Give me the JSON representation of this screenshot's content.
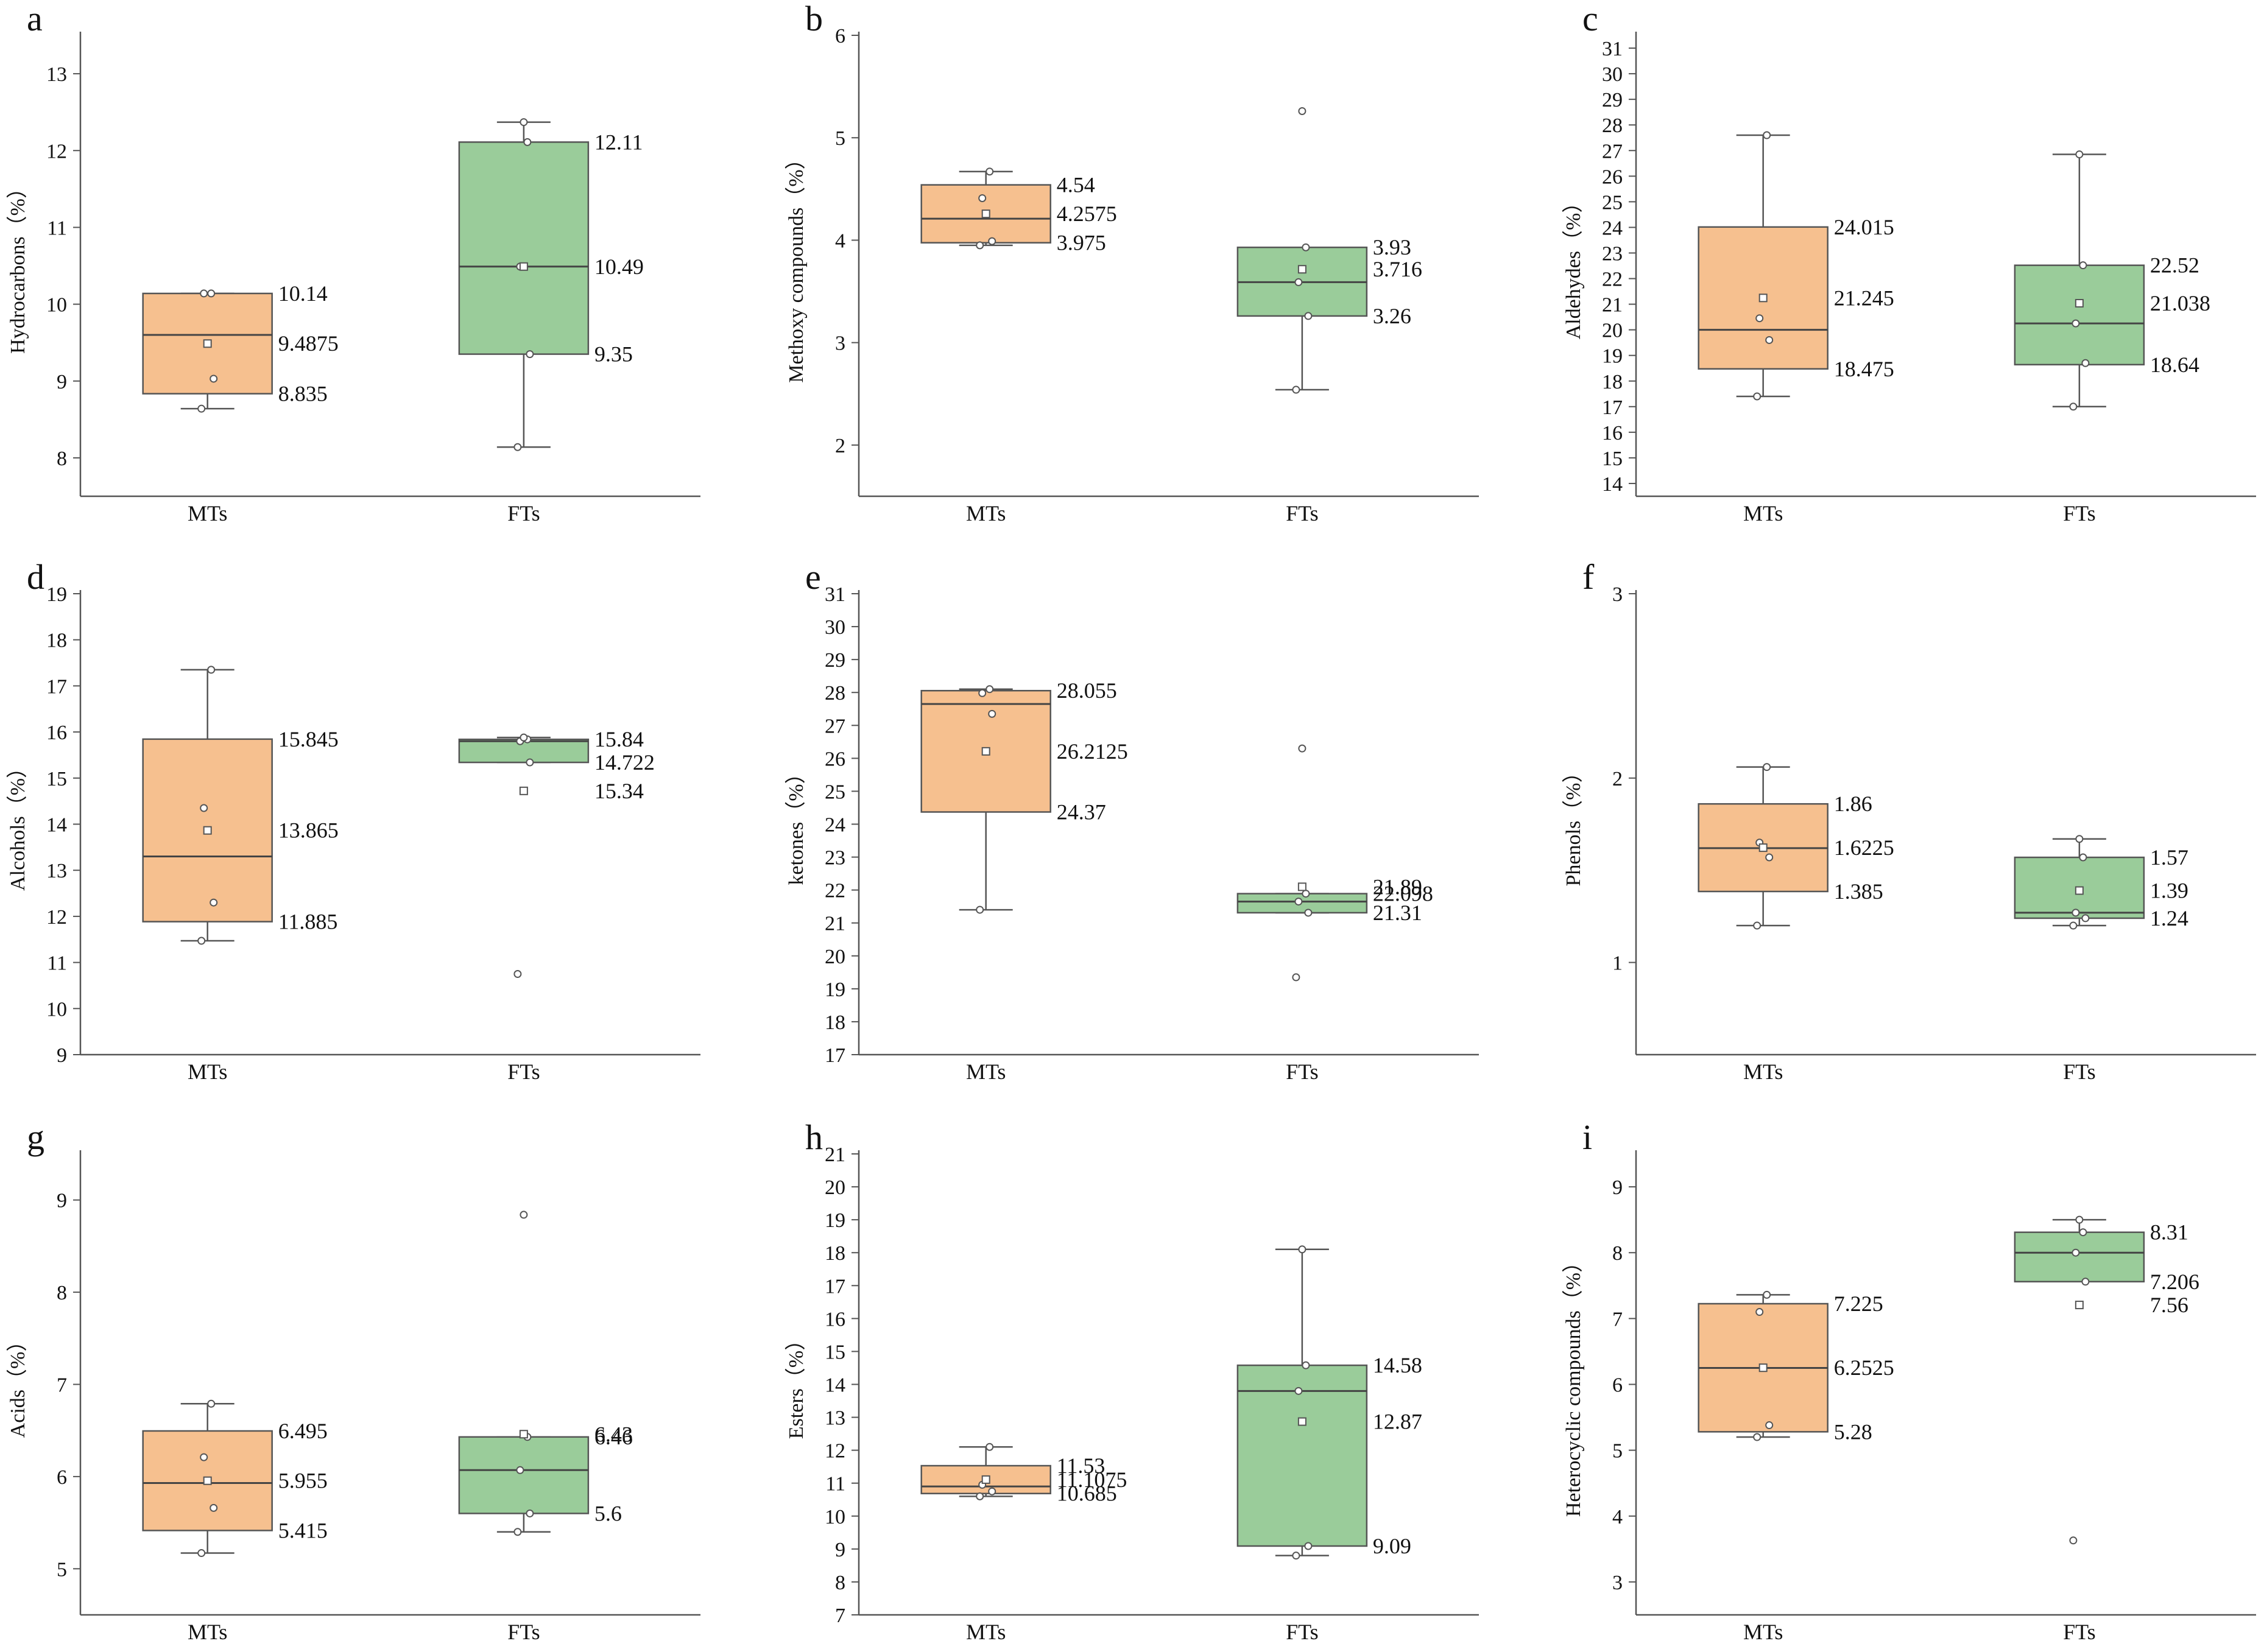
{
  "colors": {
    "MTs": "#F6C08F",
    "FTs": "#9ACC9A",
    "axis": "#555555",
    "box_edge": "#555555",
    "median": "#444444",
    "point_edge": "#555555"
  },
  "chart_data": [
    {
      "type": "box",
      "panel": "a",
      "ylabel": "Hydrocarbons（%）",
      "ylim": [
        7.5,
        13.5
      ],
      "yticks": [
        8,
        9,
        10,
        11,
        12,
        13
      ],
      "categories": [
        "MTs",
        "FTs"
      ],
      "boxes": [
        {
          "q1": 8.835,
          "median": 9.6,
          "q3": 10.14,
          "whisker_low": 8.64,
          "whisker_high": 10.14,
          "mean": 9.4875,
          "points": [
            8.64,
            9.03,
            10.14,
            10.14
          ],
          "labels": [
            "10.14",
            "9.4875",
            "8.835"
          ]
        },
        {
          "q1": 9.35,
          "median": 10.49,
          "q3": 12.11,
          "whisker_low": 8.14,
          "whisker_high": 12.37,
          "mean": 10.49,
          "points": [
            8.14,
            9.35,
            10.49,
            12.11,
            12.37
          ],
          "labels": [
            "12.11",
            "10.49",
            "9.35"
          ]
        }
      ]
    },
    {
      "type": "box",
      "panel": "b",
      "ylabel": "Methoxy compounds（%）",
      "ylim": [
        1.5,
        6
      ],
      "yticks": [
        2,
        3,
        4,
        5,
        6
      ],
      "categories": [
        "MTs",
        "FTs"
      ],
      "boxes": [
        {
          "q1": 3.975,
          "median": 4.21,
          "q3": 4.54,
          "whisker_low": 3.95,
          "whisker_high": 4.67,
          "mean": 4.2575,
          "points": [
            3.95,
            3.99,
            4.41,
            4.67
          ],
          "labels": [
            "4.54",
            "4.2575",
            "3.975"
          ]
        },
        {
          "q1": 3.26,
          "median": 3.59,
          "q3": 3.93,
          "whisker_low": 2.54,
          "whisker_high": 3.93,
          "mean": 3.716,
          "points": [
            2.54,
            3.26,
            3.59,
            3.93,
            5.26
          ],
          "labels": [
            "3.93",
            "3.716",
            "3.26"
          ]
        }
      ]
    },
    {
      "type": "box",
      "panel": "c",
      "ylabel": "Aldehydes（%）",
      "ylim": [
        13.5,
        31.5
      ],
      "yticks": [
        14,
        15,
        16,
        17,
        18,
        19,
        20,
        21,
        22,
        23,
        24,
        25,
        26,
        27,
        28,
        29,
        30,
        31
      ],
      "categories": [
        "MTs",
        "FTs"
      ],
      "boxes": [
        {
          "q1": 18.475,
          "median": 20.0,
          "q3": 24.015,
          "whisker_low": 17.4,
          "whisker_high": 27.6,
          "mean": 21.245,
          "points": [
            17.4,
            19.6,
            20.45,
            27.6
          ],
          "labels": [
            "24.015",
            "21.245",
            "18.475"
          ]
        },
        {
          "q1": 18.64,
          "median": 20.25,
          "q3": 22.52,
          "whisker_low": 17.0,
          "whisker_high": 26.85,
          "mean": 21.038,
          "points": [
            17.0,
            18.7,
            20.25,
            22.52,
            26.85
          ],
          "labels": [
            "22.52",
            "21.038",
            "18.64"
          ]
        }
      ]
    },
    {
      "type": "box",
      "panel": "d",
      "ylabel": "Alcohols（%）",
      "ylim": [
        9,
        19
      ],
      "yticks": [
        9,
        10,
        11,
        12,
        13,
        14,
        15,
        16,
        17,
        18,
        19
      ],
      "categories": [
        "MTs",
        "FTs"
      ],
      "boxes": [
        {
          "q1": 11.885,
          "median": 13.3,
          "q3": 15.845,
          "whisker_low": 11.47,
          "whisker_high": 17.35,
          "mean": 13.865,
          "points": [
            11.47,
            12.3,
            14.35,
            17.35
          ],
          "labels": [
            "15.845",
            "13.865",
            "11.885"
          ]
        },
        {
          "q1": 15.34,
          "median": 15.8,
          "q3": 15.84,
          "whisker_low": 15.34,
          "whisker_high": 15.88,
          "mean": 14.722,
          "points": [
            10.75,
            15.34,
            15.8,
            15.84,
            15.88
          ],
          "labels": [
            "15.84",
            "15.34",
            "14.722"
          ]
        }
      ]
    },
    {
      "type": "box",
      "panel": "e",
      "ylabel": "ketones（%）",
      "ylim": [
        17,
        31
      ],
      "yticks": [
        17,
        18,
        19,
        20,
        21,
        22,
        23,
        24,
        25,
        26,
        27,
        28,
        29,
        30,
        31
      ],
      "categories": [
        "MTs",
        "FTs"
      ],
      "boxes": [
        {
          "q1": 24.37,
          "median": 27.65,
          "q3": 28.055,
          "whisker_low": 21.4,
          "whisker_high": 28.1,
          "mean": 26.2125,
          "points": [
            21.4,
            27.35,
            27.98,
            28.1
          ],
          "labels": [
            "28.055",
            "26.2125",
            "24.37"
          ]
        },
        {
          "q1": 21.31,
          "median": 21.65,
          "q3": 21.89,
          "whisker_low": 21.31,
          "whisker_high": 21.89,
          "mean": 22.098,
          "points": [
            19.35,
            21.31,
            21.65,
            21.89,
            26.3
          ],
          "labels": [
            "22.098",
            "21.89",
            "21.31"
          ]
        }
      ]
    },
    {
      "type": "box",
      "panel": "f",
      "ylabel": "Phenols（%）",
      "ylim": [
        0.5,
        3
      ],
      "yticks": [
        1,
        2,
        3
      ],
      "categories": [
        "MTs",
        "FTs"
      ],
      "boxes": [
        {
          "q1": 1.385,
          "median": 1.62,
          "q3": 1.86,
          "whisker_low": 1.2,
          "whisker_high": 2.06,
          "mean": 1.6225,
          "points": [
            1.2,
            1.57,
            1.65,
            2.06
          ],
          "labels": [
            "1.86",
            "1.6225",
            "1.385"
          ]
        },
        {
          "q1": 1.24,
          "median": 1.27,
          "q3": 1.57,
          "whisker_low": 1.2,
          "whisker_high": 1.67,
          "mean": 1.39,
          "points": [
            1.2,
            1.24,
            1.27,
            1.57,
            1.67
          ],
          "labels": [
            "1.57",
            "1.39",
            "1.24"
          ]
        }
      ]
    },
    {
      "type": "box",
      "panel": "g",
      "ylabel": "Acids（%）",
      "ylim": [
        4.5,
        9.5
      ],
      "yticks": [
        5,
        6,
        7,
        8,
        9
      ],
      "categories": [
        "MTs",
        "FTs"
      ],
      "boxes": [
        {
          "q1": 5.415,
          "median": 5.93,
          "q3": 6.495,
          "whisker_low": 5.17,
          "whisker_high": 6.79,
          "mean": 5.955,
          "points": [
            5.17,
            5.66,
            6.21,
            6.79
          ],
          "labels": [
            "6.495",
            "5.955",
            "5.415"
          ]
        },
        {
          "q1": 5.6,
          "median": 6.07,
          "q3": 6.43,
          "whisker_low": 5.4,
          "whisker_high": 6.43,
          "mean": 6.46,
          "points": [
            5.4,
            5.6,
            6.07,
            6.43,
            8.84
          ],
          "labels": [
            "6.46",
            "6.43",
            "5.6"
          ]
        }
      ]
    },
    {
      "type": "box",
      "panel": "h",
      "ylabel": "Esters（%）",
      "ylim": [
        7,
        21
      ],
      "yticks": [
        7,
        8,
        9,
        10,
        11,
        12,
        13,
        14,
        15,
        16,
        17,
        18,
        19,
        20,
        21
      ],
      "categories": [
        "MTs",
        "FTs"
      ],
      "boxes": [
        {
          "q1": 10.685,
          "median": 10.9,
          "q3": 11.53,
          "whisker_low": 10.6,
          "whisker_high": 12.1,
          "mean": 11.1075,
          "points": [
            10.6,
            10.75,
            10.95,
            12.1
          ],
          "labels": [
            "11.53",
            "11.1075",
            "10.685"
          ]
        },
        {
          "q1": 9.09,
          "median": 13.8,
          "q3": 14.58,
          "whisker_low": 8.8,
          "whisker_high": 18.1,
          "mean": 12.87,
          "points": [
            8.8,
            9.09,
            13.8,
            14.58,
            18.1
          ],
          "labels": [
            "14.58",
            "12.87",
            "9.09"
          ]
        }
      ]
    },
    {
      "type": "box",
      "panel": "i",
      "ylabel": "Heterocyclic compounds（%）",
      "ylim": [
        2.5,
        9.5
      ],
      "yticks": [
        3,
        4,
        5,
        6,
        7,
        8,
        9
      ],
      "categories": [
        "MTs",
        "FTs"
      ],
      "boxes": [
        {
          "q1": 5.28,
          "median": 6.25,
          "q3": 7.225,
          "whisker_low": 5.2,
          "whisker_high": 7.36,
          "mean": 6.2525,
          "points": [
            5.2,
            5.38,
            7.1,
            7.36
          ],
          "labels": [
            "7.225",
            "6.2525",
            "5.28"
          ]
        },
        {
          "q1": 7.56,
          "median": 8.0,
          "q3": 8.31,
          "whisker_low": 7.56,
          "whisker_high": 8.5,
          "mean": 7.206,
          "points": [
            3.63,
            7.56,
            8.0,
            8.31,
            8.5
          ],
          "labels": [
            "8.31",
            "7.56",
            "7.206"
          ]
        }
      ]
    }
  ]
}
